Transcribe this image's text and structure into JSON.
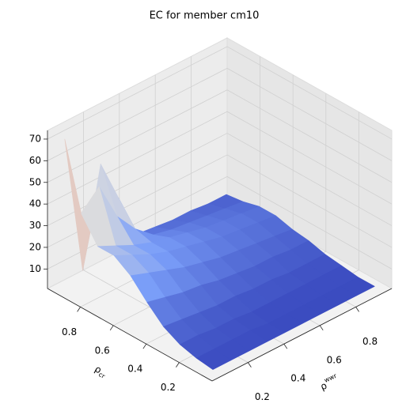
{
  "chart_data": {
    "type": "surface",
    "title": "EC for member cm10",
    "xlabel": "ρ",
    "xlabel_sup": "wwr",
    "ylabel": "ρ",
    "ylabel_sub": "cr",
    "colormap": "coolwarm",
    "x": [
      0.05,
      0.15,
      0.25,
      0.35,
      0.45,
      0.55,
      0.65,
      0.75,
      0.85,
      0.95
    ],
    "y": [
      0.05,
      0.15,
      0.25,
      0.35,
      0.45,
      0.55,
      0.65,
      0.75,
      0.85,
      0.95
    ],
    "z": [
      [
        2,
        2,
        2,
        2,
        2,
        2,
        2,
        2,
        2,
        2
      ],
      [
        3,
        3,
        3,
        3,
        2,
        2,
        2,
        2,
        2,
        2
      ],
      [
        5,
        5,
        4,
        4,
        3,
        3,
        3,
        3,
        3,
        3
      ],
      [
        9,
        8,
        7,
        6,
        6,
        5,
        5,
        4,
        4,
        4
      ],
      [
        16,
        14,
        12,
        11,
        9,
        8,
        7,
        7,
        6,
        6
      ],
      [
        24,
        21,
        18,
        15,
        13,
        11,
        10,
        9,
        8,
        7
      ],
      [
        29,
        25,
        21,
        18,
        16,
        14,
        12,
        11,
        10,
        9
      ],
      [
        29,
        25,
        21,
        18,
        16,
        14,
        12,
        11,
        10,
        9
      ],
      [
        40,
        48,
        30,
        20,
        13,
        11,
        10,
        9,
        8,
        7
      ],
      [
        70,
        5,
        50,
        30,
        9,
        8,
        7,
        7,
        6,
        6
      ]
    ],
    "xlim": [
      0,
      1
    ],
    "ylim": [
      0,
      1
    ],
    "zlim": [
      1,
      74
    ],
    "xticks": [
      0.2,
      0.4,
      0.6,
      0.8
    ],
    "yticks": [
      0.2,
      0.4,
      0.6,
      0.8
    ],
    "zticks": [
      10,
      20,
      30,
      40,
      50,
      60,
      70
    ],
    "grid": true
  }
}
